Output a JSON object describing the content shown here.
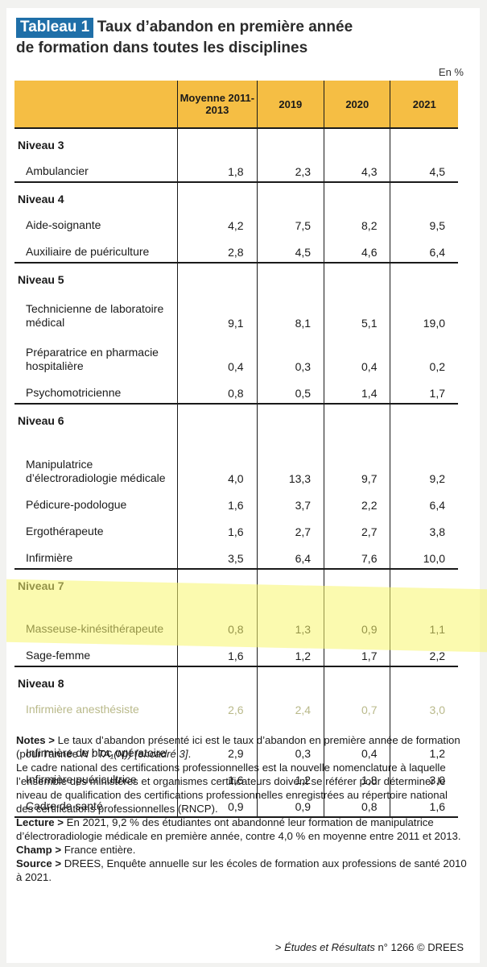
{
  "title": {
    "badge": "Tableau 1",
    "line1": "Taux d’abandon en première année",
    "line2": "de formation dans toutes les disciplines"
  },
  "unit": "En %",
  "columns": [
    "",
    "Moyenne 2011-2013",
    "2019",
    "2020",
    "2021"
  ],
  "rows": [
    {
      "type": "level",
      "label": "Niveau 3"
    },
    {
      "type": "item",
      "label": "Ambulancier",
      "values": [
        "1,8",
        "2,3",
        "4,3",
        "4,5"
      ]
    },
    {
      "type": "level",
      "label": "Niveau 4"
    },
    {
      "type": "item",
      "label": "Aide-soignante",
      "values": [
        "4,2",
        "7,5",
        "8,2",
        "9,5"
      ]
    },
    {
      "type": "item",
      "label": "Auxiliaire de puériculture",
      "values": [
        "2,8",
        "4,5",
        "4,6",
        "6,4"
      ]
    },
    {
      "type": "level",
      "label": "Niveau 5"
    },
    {
      "type": "item",
      "label": "Technicienne de laboratoire médical",
      "values": [
        "9,1",
        "8,1",
        "5,1",
        "19,0"
      ]
    },
    {
      "type": "item",
      "label": "Préparatrice en pharmacie hospitalière",
      "values": [
        "0,4",
        "0,3",
        "0,4",
        "0,2"
      ]
    },
    {
      "type": "item",
      "label": "Psychomotricienne",
      "values": [
        "0,8",
        "0,5",
        "1,4",
        "1,7"
      ]
    },
    {
      "type": "level",
      "label": "Niveau 6"
    },
    {
      "type": "item",
      "label": "Manipulatrice d’électroradiologie médicale",
      "values": [
        "4,0",
        "13,3",
        "9,7",
        "9,2"
      ]
    },
    {
      "type": "item",
      "label": "Pédicure-podologue",
      "values": [
        "1,6",
        "3,7",
        "2,2",
        "6,4"
      ]
    },
    {
      "type": "item",
      "label": "Ergothérapeute",
      "values": [
        "1,6",
        "2,7",
        "2,7",
        "3,8"
      ]
    },
    {
      "type": "item",
      "label": "Infirmière",
      "values": [
        "3,5",
        "6,4",
        "7,6",
        "10,0"
      ]
    },
    {
      "type": "level",
      "label": "Niveau 7"
    },
    {
      "type": "item",
      "label": "Masseuse-kinésithérapeute",
      "values": [
        "0,8",
        "1,3",
        "0,9",
        "1,1"
      ]
    },
    {
      "type": "item",
      "label": "Sage-femme",
      "values": [
        "1,6",
        "1,2",
        "1,7",
        "2,2"
      ]
    },
    {
      "type": "level",
      "label": "Niveau 8"
    },
    {
      "type": "item",
      "label": "Infirmière anesthésiste",
      "values": [
        "2,6",
        "2,4",
        "0,7",
        "3,0"
      ]
    },
    {
      "type": "item",
      "label": "Infirmière de bloc opératoire",
      "values": [
        "2,9",
        "0,3",
        "0,4",
        "1,2"
      ]
    },
    {
      "type": "item",
      "label": "Infirmière puéricultrice",
      "values": [
        "1,6",
        "1,2",
        "1,8",
        "3,0"
      ]
    },
    {
      "type": "item",
      "label": "Cadre de santé",
      "values": [
        "0,9",
        "0,9",
        "0,8",
        "1,6"
      ]
    }
  ],
  "notes": {
    "notes_label": "Notes >",
    "notes_text1": " Le taux d’abandon présenté ici est le taux d’abandon en première année de formation (pour l’année ",
    "notes_formula": "N : TA₁(N)) [encadré 3]",
    "notes_text2": ".",
    "notes_para2": "Le cadre national des certifications professionnelles est la nouvelle nomenclature à laquelle l’ensemble des ministères et organismes certificateurs doivent se référer pour déterminer le niveau de qualification des certifications professionnelles enregistrées au répertoire national des certifications professionnelles (RNCP).",
    "lecture_label": "Lecture >",
    "lecture_text": " En 2021, 9,2 % des étudiantes ont abandonné leur formation de manipulatrice d’électroradiologie médicale en première année, contre 4,0 % en moyenne entre 2011 et 2013.",
    "champ_label": "Champ >",
    "champ_text": " France entière.",
    "source_label": "Source >",
    "source_text": " DREES, Enquête annuelle sur les écoles de formation aux professions de santé 2010 à 2021."
  },
  "credit": {
    "prefix": "> ",
    "pub": "Études et Résultats",
    "suffix": " n° 1266 © DREES"
  },
  "colors": {
    "header_yellow": "#f5be44",
    "badge_blue": "#1f6fa8",
    "highlight": "#f8f56e"
  }
}
